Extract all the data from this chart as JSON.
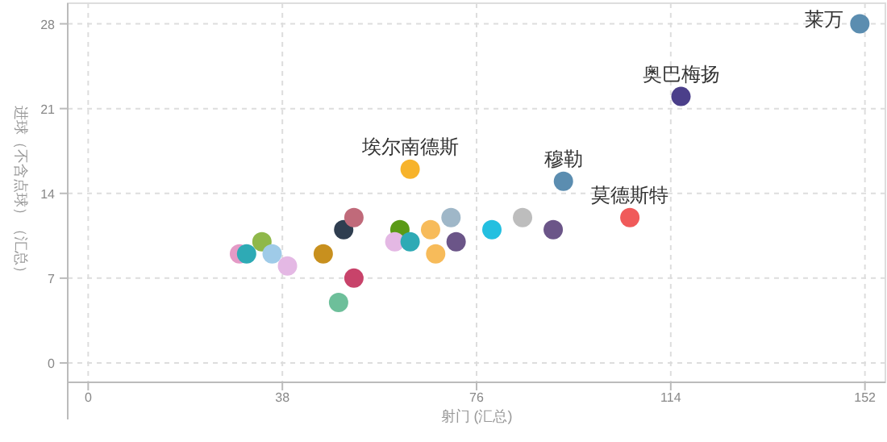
{
  "chart_data": {
    "type": "scatter",
    "xlabel": "射门 (汇总)",
    "ylabel": "进球（不含点球）（汇总）",
    "xlim": [
      -4,
      156
    ],
    "ylim": [
      -1.6,
      29.7
    ],
    "xticks": [
      0,
      38,
      76,
      114,
      152
    ],
    "yticks": [
      0,
      7,
      14,
      21,
      28
    ],
    "grid": true,
    "marker": "circle",
    "x": [
      151,
      116,
      93,
      106,
      63,
      29.6,
      31,
      34,
      36,
      39,
      46,
      50,
      52,
      52,
      49,
      61,
      60,
      63,
      67,
      68,
      71,
      72,
      79,
      85,
      91
    ],
    "values": [
      28,
      22,
      15,
      12,
      16,
      9,
      9,
      10,
      9,
      8,
      9,
      11,
      12,
      7,
      5,
      11,
      10,
      10,
      11,
      9,
      12,
      10,
      11,
      12,
      11
    ],
    "colors": [
      "#5b8db0",
      "#4b3f8a",
      "#5b8db0",
      "#f05a5a",
      "#f7b32b",
      "#e49ac6",
      "#2eaab5",
      "#8fb84a",
      "#9fcbe8",
      "#e4b8e4",
      "#c8901e",
      "#2f3e50",
      "#c06a7a",
      "#c8436a",
      "#6dbf9a",
      "#5a9a16",
      "#e4b8e4",
      "#2eaab5",
      "#f7bb5a",
      "#f7bb5a",
      "#9fb7c8",
      "#6b5588",
      "#24bfe0",
      "#bdbdbd",
      "#6b5588"
    ],
    "annotations": [
      {
        "text": "莱万",
        "x": 151,
        "y": 28
      },
      {
        "text": "奥巴梅扬",
        "x": 116,
        "y": 22
      },
      {
        "text": "穆勒",
        "x": 93,
        "y": 15
      },
      {
        "text": "莫德斯特",
        "x": 106,
        "y": 12
      },
      {
        "text": "埃尔南德斯",
        "x": 63,
        "y": 16
      }
    ]
  }
}
